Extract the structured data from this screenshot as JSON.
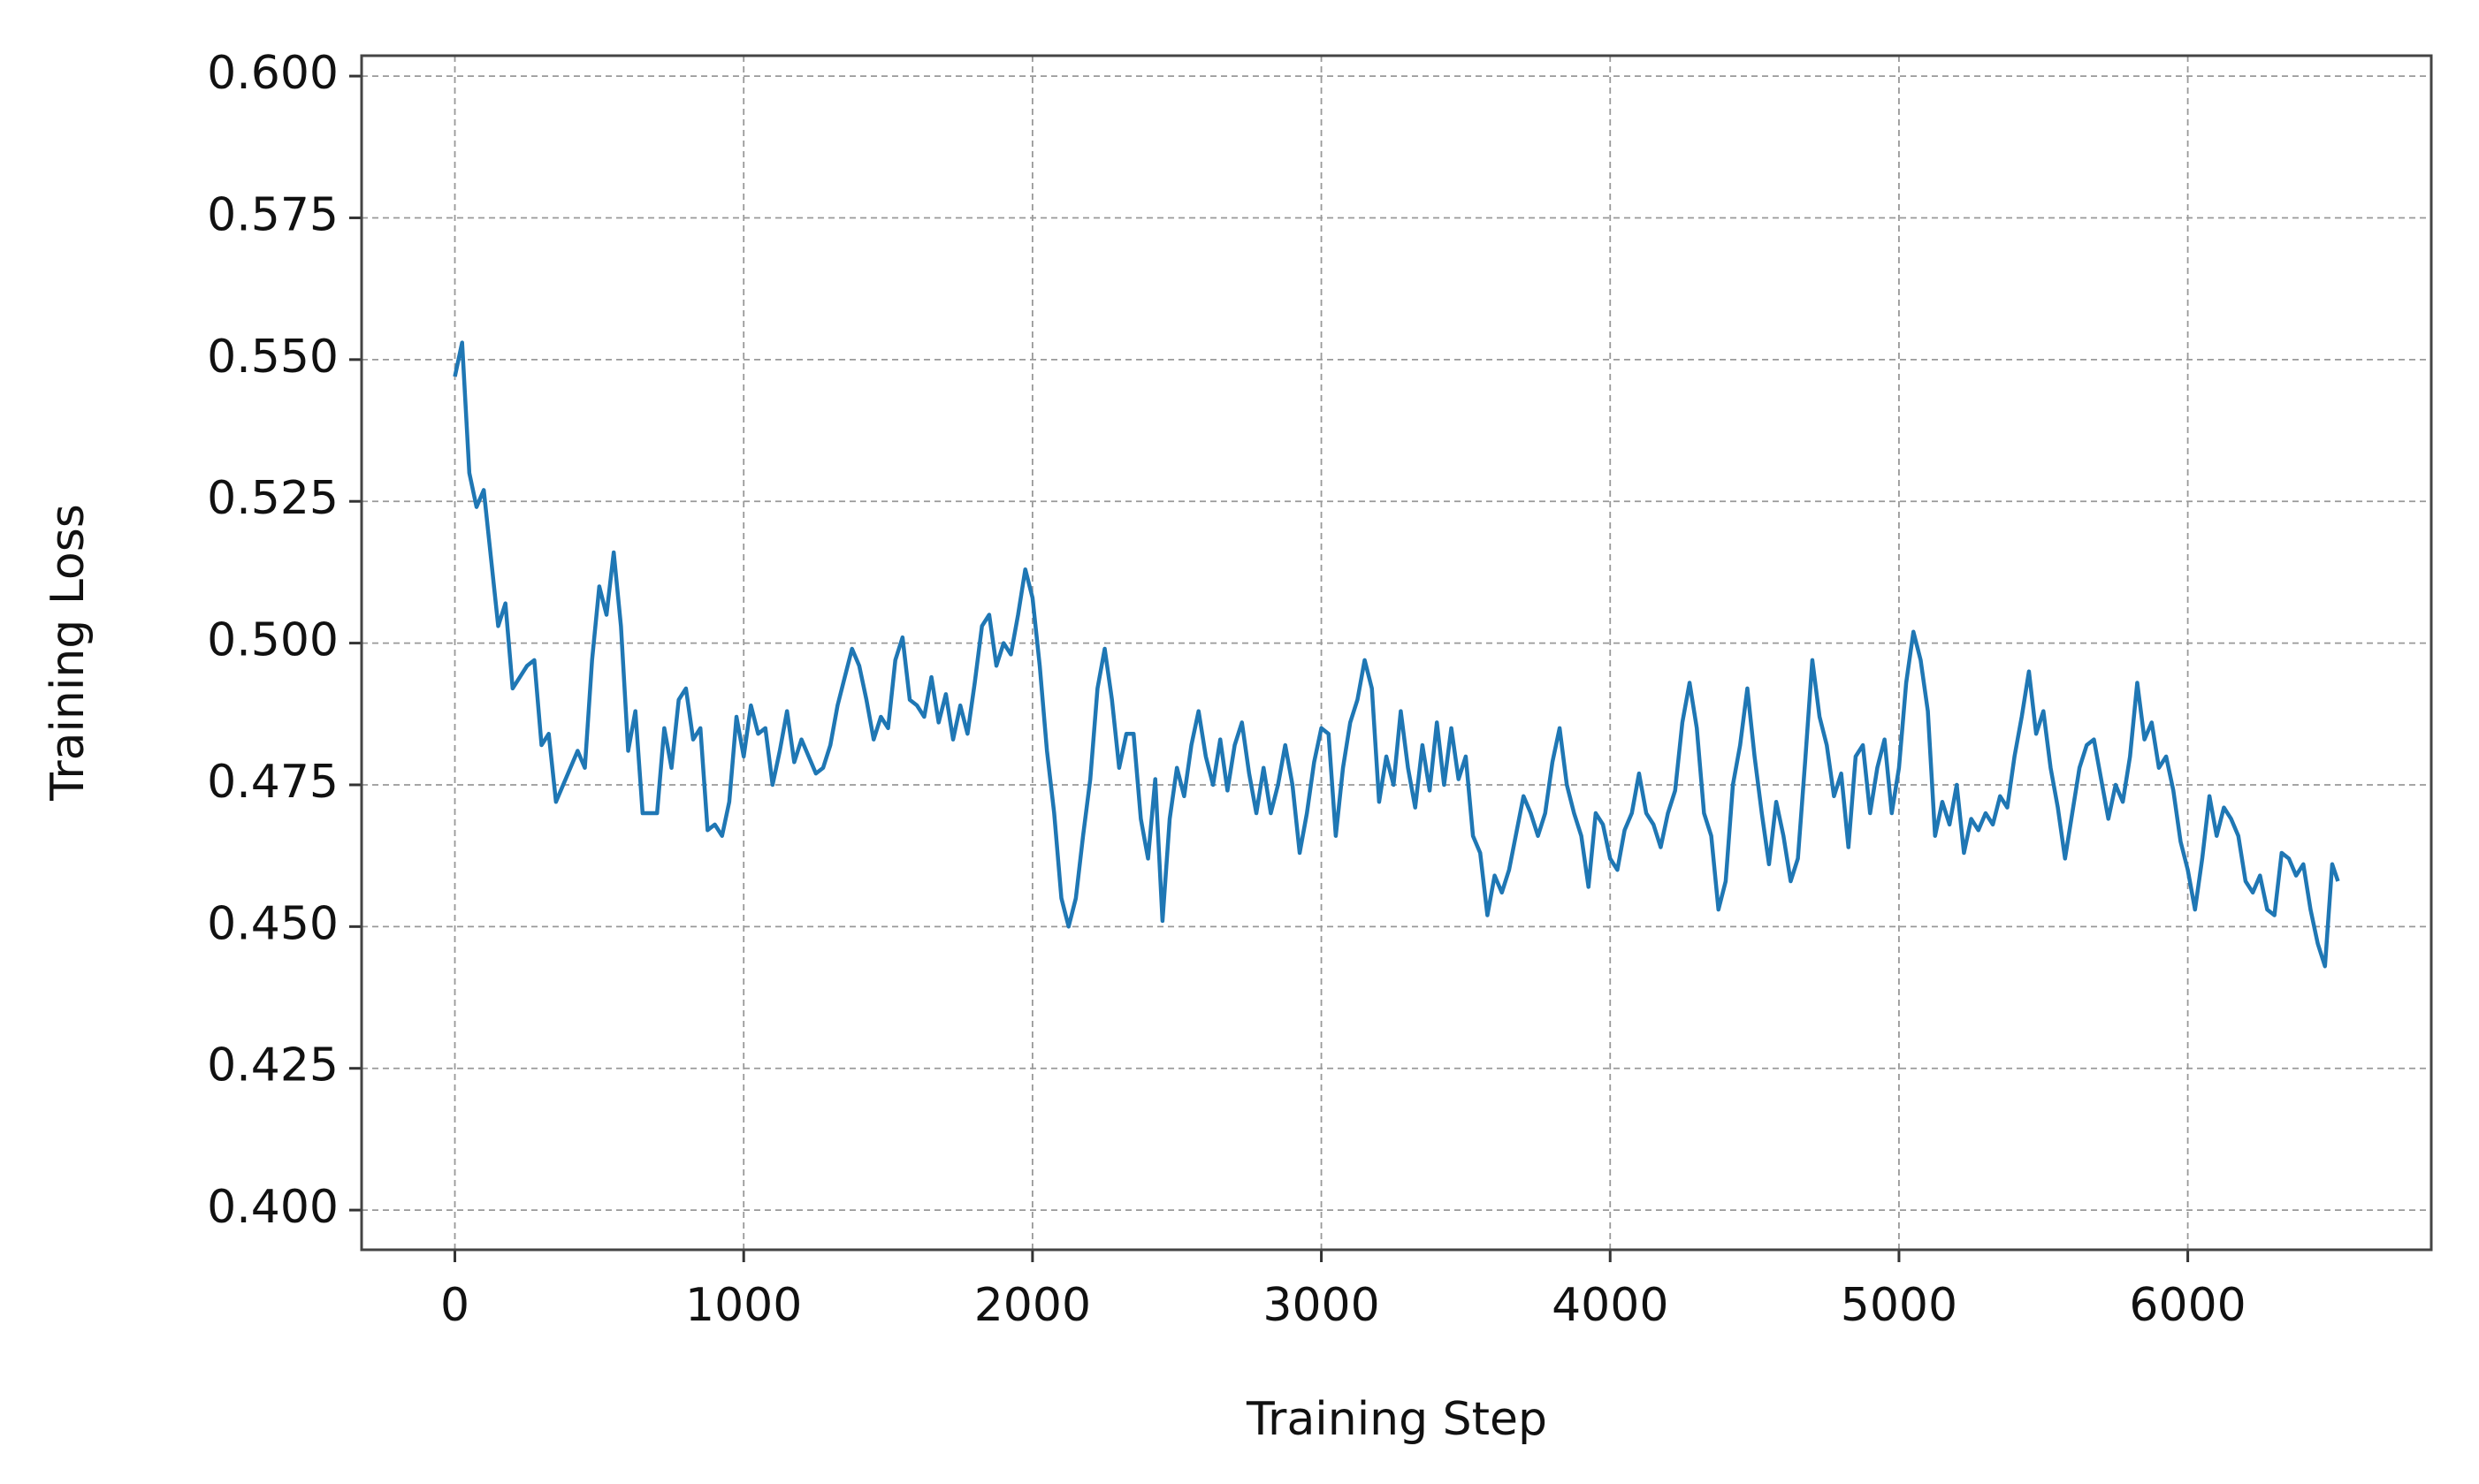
{
  "chart_data": {
    "type": "line",
    "x_label": "Training Step",
    "y_label": "Training Loss",
    "color": "#1f77b4",
    "grid": true,
    "xlim": [
      -323,
      6843
    ],
    "ylim": [
      0.393,
      0.6036
    ],
    "xticks": [
      0,
      1000,
      2000,
      3000,
      4000,
      5000,
      6000
    ],
    "yticks": [
      {
        "value": 0.4,
        "label": "0.400"
      },
      0.425,
      {
        "value": 0.45,
        "label": "0.450"
      },
      0.475,
      {
        "value": 0.5,
        "label": "0.500"
      },
      0.525,
      {
        "value": 0.55,
        "label": "0.550"
      },
      0.575,
      {
        "value": 0.6,
        "label": "0.600"
      }
    ],
    "x": [
      0,
      25,
      50,
      75,
      100,
      125,
      150,
      175,
      200,
      250,
      275,
      300,
      325,
      350,
      400,
      425,
      450,
      475,
      500,
      525,
      550,
      575,
      600,
      625,
      650,
      700,
      725,
      750,
      775,
      800,
      825,
      850,
      875,
      900,
      925,
      950,
      975,
      1000,
      1025,
      1050,
      1075,
      1100,
      1125,
      1150,
      1175,
      1200,
      1250,
      1275,
      1300,
      1325,
      1350,
      1375,
      1400,
      1425,
      1450,
      1475,
      1500,
      1525,
      1550,
      1575,
      1600,
      1625,
      1650,
      1675,
      1700,
      1725,
      1750,
      1775,
      1800,
      1825,
      1850,
      1875,
      1900,
      1925,
      1950,
      1975,
      2000,
      2025,
      2050,
      2075,
      2100,
      2125,
      2150,
      2175,
      2200,
      2225,
      2250,
      2275,
      2300,
      2325,
      2350,
      2375,
      2400,
      2425,
      2450,
      2475,
      2500,
      2525,
      2550,
      2575,
      2600,
      2625,
      2650,
      2675,
      2700,
      2725,
      2750,
      2775,
      2800,
      2825,
      2850,
      2875,
      2900,
      2925,
      2950,
      2975,
      3000,
      3025,
      3050,
      3075,
      3100,
      3125,
      3150,
      3175,
      3200,
      3225,
      3250,
      3275,
      3300,
      3325,
      3350,
      3375,
      3400,
      3425,
      3450,
      3475,
      3500,
      3525,
      3550,
      3575,
      3600,
      3625,
      3650,
      3700,
      3725,
      3750,
      3775,
      3800,
      3825,
      3850,
      3875,
      3900,
      3925,
      3950,
      3975,
      4000,
      4025,
      4050,
      4075,
      4100,
      4125,
      4150,
      4175,
      4200,
      4225,
      4250,
      4275,
      4300,
      4325,
      4350,
      4375,
      4400,
      4425,
      4450,
      4475,
      4500,
      4525,
      4550,
      4575,
      4600,
      4625,
      4650,
      4675,
      4700,
      4725,
      4750,
      4775,
      4800,
      4825,
      4850,
      4875,
      4900,
      4925,
      4950,
      4975,
      5000,
      5025,
      5050,
      5075,
      5100,
      5125,
      5150,
      5175,
      5200,
      5225,
      5250,
      5275,
      5300,
      5325,
      5350,
      5375,
      5400,
      5425,
      5450,
      5475,
      5500,
      5525,
      5550,
      5575,
      5600,
      5625,
      5650,
      5675,
      5700,
      5725,
      5750,
      5775,
      5800,
      5825,
      5850,
      5875,
      5900,
      5925,
      5950,
      5975,
      6000,
      6025,
      6050,
      6075,
      6100,
      6125,
      6150,
      6175,
      6200,
      6225,
      6250,
      6275,
      6300,
      6325,
      6350,
      6375,
      6400,
      6425,
      6450,
      6475,
      6500,
      6520
    ],
    "values": [
      0.547,
      0.553,
      0.53,
      0.524,
      0.527,
      0.515,
      0.503,
      0.507,
      0.492,
      0.496,
      0.497,
      0.482,
      0.484,
      0.472,
      0.478,
      0.481,
      0.478,
      0.497,
      0.51,
      0.505,
      0.516,
      0.503,
      0.481,
      0.488,
      0.47,
      0.47,
      0.485,
      0.478,
      0.49,
      0.492,
      0.483,
      0.485,
      0.467,
      0.468,
      0.466,
      0.472,
      0.487,
      0.48,
      0.489,
      0.484,
      0.485,
      0.475,
      0.481,
      0.488,
      0.479,
      0.483,
      0.477,
      0.478,
      0.482,
      0.489,
      0.494,
      0.499,
      0.496,
      0.49,
      0.483,
      0.487,
      0.485,
      0.497,
      0.501,
      0.49,
      0.489,
      0.487,
      0.494,
      0.486,
      0.491,
      0.483,
      0.489,
      0.484,
      0.493,
      0.503,
      0.505,
      0.496,
      0.5,
      0.498,
      0.505,
      0.513,
      0.508,
      0.496,
      0.481,
      0.47,
      0.455,
      0.45,
      0.455,
      0.466,
      0.476,
      0.492,
      0.499,
      0.49,
      0.478,
      0.484,
      0.484,
      0.469,
      0.462,
      0.476,
      0.451,
      0.469,
      0.478,
      0.473,
      0.482,
      0.488,
      0.48,
      0.475,
      0.483,
      0.474,
      0.482,
      0.486,
      0.477,
      0.47,
      0.478,
      0.47,
      0.475,
      0.482,
      0.475,
      0.463,
      0.47,
      0.479,
      0.485,
      0.484,
      0.466,
      0.478,
      0.486,
      0.49,
      0.497,
      0.492,
      0.472,
      0.48,
      0.475,
      0.488,
      0.478,
      0.471,
      0.482,
      0.474,
      0.486,
      0.475,
      0.485,
      0.476,
      0.48,
      0.466,
      0.463,
      0.452,
      0.459,
      0.456,
      0.46,
      0.473,
      0.47,
      0.466,
      0.47,
      0.479,
      0.485,
      0.475,
      0.47,
      0.466,
      0.457,
      0.47,
      0.468,
      0.462,
      0.46,
      0.467,
      0.47,
      0.477,
      0.47,
      0.468,
      0.464,
      0.47,
      0.474,
      0.486,
      0.493,
      0.485,
      0.47,
      0.466,
      0.453,
      0.458,
      0.475,
      0.482,
      0.492,
      0.48,
      0.47,
      0.461,
      0.472,
      0.466,
      0.458,
      0.462,
      0.479,
      0.497,
      0.487,
      0.482,
      0.473,
      0.477,
      0.464,
      0.48,
      0.482,
      0.47,
      0.478,
      0.483,
      0.47,
      0.478,
      0.493,
      0.502,
      0.497,
      0.488,
      0.466,
      0.472,
      0.468,
      0.475,
      0.463,
      0.469,
      0.467,
      0.47,
      0.468,
      0.473,
      0.471,
      0.48,
      0.487,
      0.495,
      0.484,
      0.488,
      0.478,
      0.471,
      0.462,
      0.47,
      0.478,
      0.482,
      0.483,
      0.476,
      0.469,
      0.475,
      0.472,
      0.48,
      0.493,
      0.483,
      0.486,
      0.478,
      0.48,
      0.474,
      0.465,
      0.46,
      0.453,
      0.462,
      0.473,
      0.466,
      0.471,
      0.469,
      0.466,
      0.458,
      0.456,
      0.459,
      0.453,
      0.452,
      0.463,
      0.462,
      0.459,
      0.461,
      0.453,
      0.447,
      0.443,
      0.461,
      0.458
    ]
  }
}
